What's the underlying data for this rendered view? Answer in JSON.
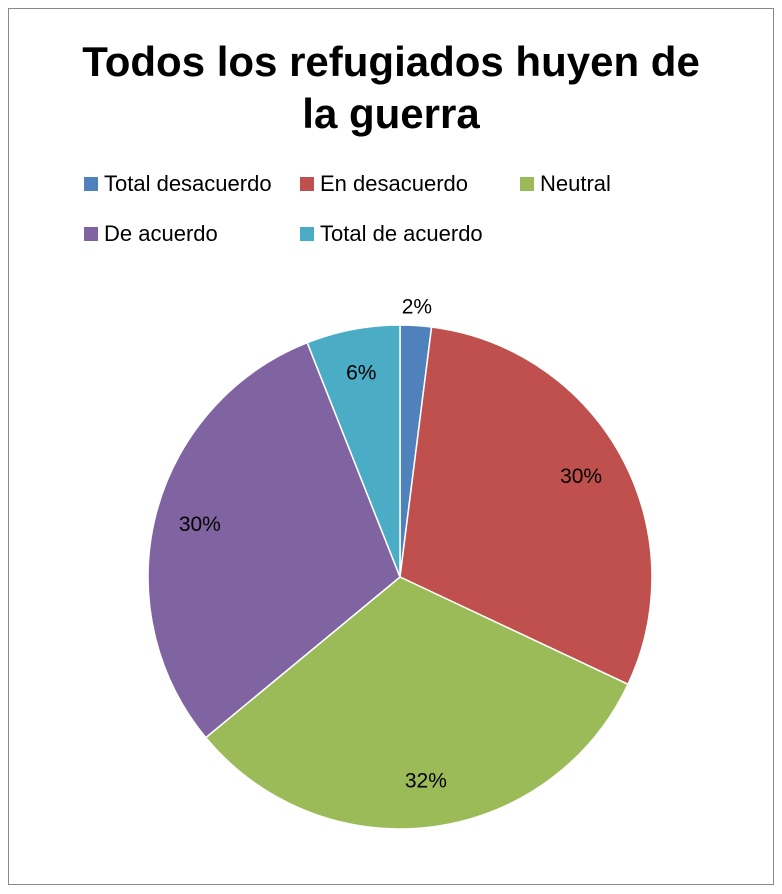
{
  "chart_data": {
    "type": "pie",
    "title": "Todos los refugiados huyen de la guerra",
    "categories": [
      "Total desacuerdo",
      "En desacuerdo",
      "Neutral",
      "De acuerdo",
      "Total de acuerdo"
    ],
    "values": [
      2,
      30,
      32,
      30,
      6
    ],
    "value_labels": [
      "2%",
      "30%",
      "32%",
      "30%",
      "6%"
    ],
    "colors": [
      "#4f81bd",
      "#c0504d",
      "#9bbb59",
      "#8064a2",
      "#4bacc6"
    ],
    "legend": "top"
  }
}
